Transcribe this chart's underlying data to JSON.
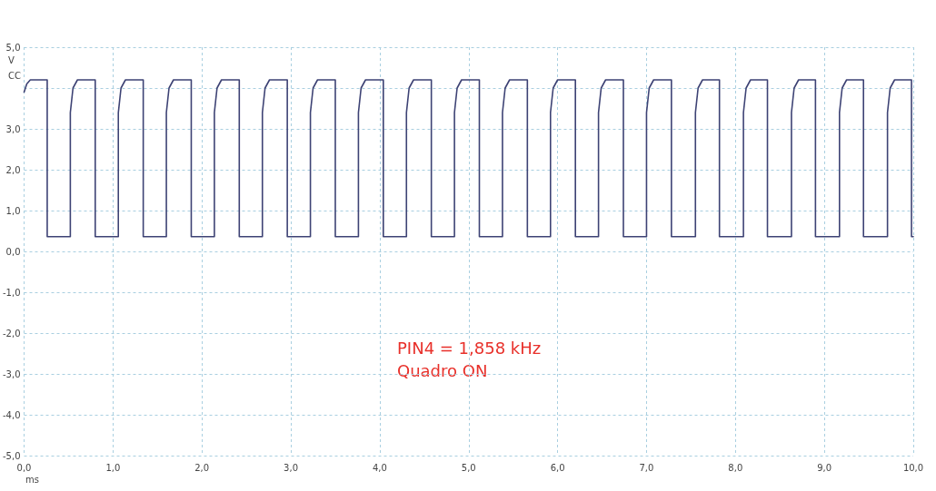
{
  "chart_data": {
    "type": "line",
    "xlabel": "ms",
    "ylabel": "V",
    "annotations": [
      "CC",
      "PIN4 = 1,858 kHz",
      "Quadro ON"
    ],
    "x": [
      0,
      0.03,
      0.07,
      0.26,
      0.26,
      0.52,
      0.52,
      0.55,
      0.6,
      0.8,
      0.8,
      1.06,
      1.06,
      1.09,
      1.14,
      1.34,
      1.34,
      1.6,
      1.6,
      1.63,
      1.68,
      1.88,
      1.88,
      2.14,
      2.14,
      2.17,
      2.22,
      2.42,
      2.42,
      2.68,
      2.68,
      2.71,
      2.76,
      2.96,
      2.96,
      3.22,
      3.22,
      3.25,
      3.3,
      3.5,
      3.5,
      3.76,
      3.76,
      3.79,
      3.84,
      4.04,
      4.04,
      4.3,
      4.3,
      4.33,
      4.38,
      4.58,
      4.58,
      4.84,
      4.84,
      4.87,
      4.92,
      5.12,
      5.12,
      5.38,
      5.38,
      5.41,
      5.46,
      5.66,
      5.66,
      5.92,
      5.92,
      5.95,
      6,
      6.2,
      6.2,
      6.46,
      6.46,
      6.49,
      6.54,
      6.74,
      6.74,
      7,
      7,
      7.03,
      7.08,
      7.28,
      7.28,
      7.55,
      7.55,
      7.58,
      7.63,
      7.82,
      7.82,
      8.09,
      8.09,
      8.12,
      8.17,
      8.36,
      8.36,
      8.63,
      8.63,
      8.66,
      8.71,
      8.9,
      8.9,
      9.17,
      9.17,
      9.2,
      9.25,
      9.44,
      9.44,
      9.71,
      9.71,
      9.74,
      9.79,
      9.98,
      9.98,
      10
    ],
    "series": [
      {
        "color": "#3d4274",
        "values": [
          3.9,
          4.1,
          4.2,
          4.2,
          0.36,
          0.36,
          3.4,
          4.0,
          4.2,
          4.2,
          0.36,
          0.36,
          3.4,
          4.0,
          4.2,
          4.2,
          0.36,
          0.36,
          3.4,
          4.0,
          4.2,
          4.2,
          0.36,
          0.36,
          3.4,
          4.0,
          4.2,
          4.2,
          0.36,
          0.36,
          3.4,
          4.0,
          4.2,
          4.2,
          0.36,
          0.36,
          3.4,
          4.0,
          4.2,
          4.2,
          0.36,
          0.36,
          3.4,
          4.0,
          4.2,
          4.2,
          0.36,
          0.36,
          3.4,
          4.0,
          4.2,
          4.2,
          0.36,
          0.36,
          3.4,
          4.0,
          4.2,
          4.2,
          0.36,
          0.36,
          3.4,
          4.0,
          4.2,
          4.2,
          0.36,
          0.36,
          3.4,
          4.0,
          4.2,
          4.2,
          0.36,
          0.36,
          3.4,
          4.0,
          4.2,
          4.2,
          0.36,
          0.36,
          3.4,
          4.0,
          4.2,
          4.2,
          0.36,
          0.36,
          3.4,
          4.0,
          4.2,
          4.2,
          0.36,
          0.36,
          3.4,
          4.0,
          4.2,
          4.2,
          0.36,
          0.36,
          3.4,
          4.0,
          4.2,
          4.2,
          0.36,
          0.36,
          3.4,
          4.0,
          4.2,
          4.2,
          0.36,
          0.36,
          3.4,
          4.0,
          4.2,
          4.2,
          0.36,
          0.36
        ]
      }
    ],
    "xlim": [
      0,
      10
    ],
    "xticks": [
      {
        "value": 0,
        "label": "0,0"
      },
      {
        "value": 1,
        "label": "1,0"
      },
      {
        "value": 2,
        "label": "2,0"
      },
      {
        "value": 3,
        "label": "3,0"
      },
      {
        "value": 4,
        "label": "4,0"
      },
      {
        "value": 5,
        "label": "5,0"
      },
      {
        "value": 6,
        "label": "6,0"
      },
      {
        "value": 7,
        "label": "7,0"
      },
      {
        "value": 8,
        "label": "8,0"
      },
      {
        "value": 9,
        "label": "9,0"
      },
      {
        "value": 10,
        "label": "10,0"
      }
    ],
    "ylim": [
      -5,
      5
    ],
    "yticks": [
      {
        "value": -5,
        "label": "-5,0"
      },
      {
        "value": -4,
        "label": "-4,0"
      },
      {
        "value": -3,
        "label": "-3,0"
      },
      {
        "value": -2,
        "label": "-2,0"
      },
      {
        "value": -1,
        "label": "-1,0"
      },
      {
        "value": 0,
        "label": "0,0"
      },
      {
        "value": 1,
        "label": "1,0"
      },
      {
        "value": 2,
        "label": "2,0"
      },
      {
        "value": 3,
        "label": "3,0"
      },
      {
        "value": 4,
        "label": null
      },
      {
        "value": 5,
        "label": "5,0"
      }
    ],
    "grid": true,
    "marker": "none",
    "line_style": "solid"
  }
}
